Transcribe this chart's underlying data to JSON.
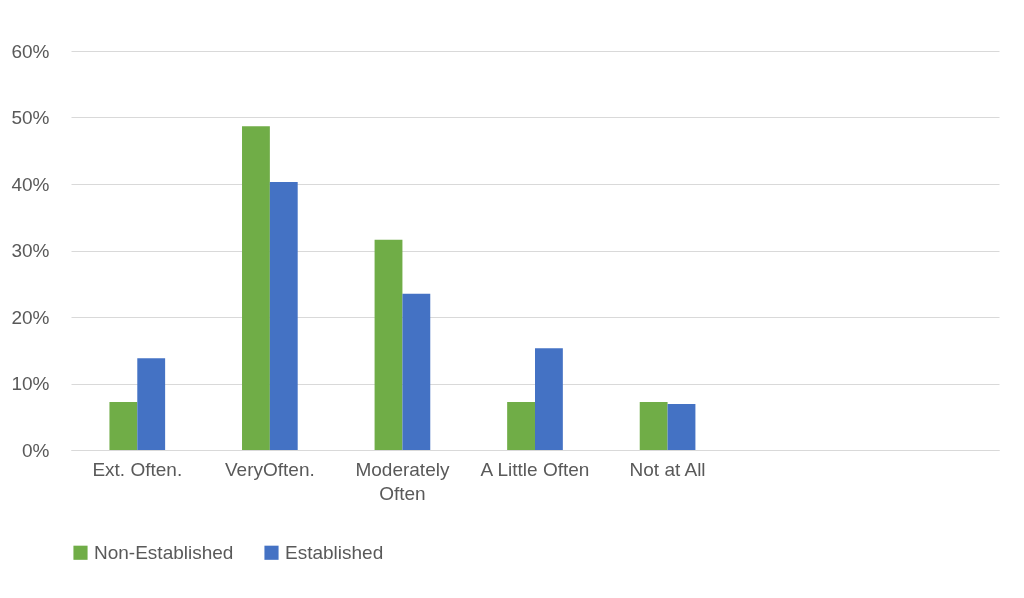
{
  "chart_data": {
    "type": "bar",
    "categories": [
      "Ext. Often.",
      "VeryOften.",
      "Moderately Often",
      "A Little Often",
      "Not at All",
      null,
      null
    ],
    "series": [
      {
        "name": "Non-Established",
        "color": "#70ad47",
        "values": [
          7.2,
          48.7,
          31.6,
          7.2,
          7.2,
          null,
          null
        ]
      },
      {
        "name": "Established",
        "color": "#4472c4",
        "values": [
          13.8,
          40.3,
          23.5,
          15.3,
          6.9,
          null,
          null
        ]
      }
    ],
    "ylim": [
      0,
      60
    ],
    "yticks": [
      {
        "value": 0,
        "label": "0%"
      },
      {
        "value": 10,
        "label": "10%"
      },
      {
        "value": 20,
        "label": "20%"
      },
      {
        "value": 30,
        "label": "30%"
      },
      {
        "value": 40,
        "label": "40%"
      },
      {
        "value": 50,
        "label": "50%"
      },
      {
        "value": 60,
        "label": "60%"
      }
    ],
    "grid": "y",
    "legend": "bottom"
  }
}
